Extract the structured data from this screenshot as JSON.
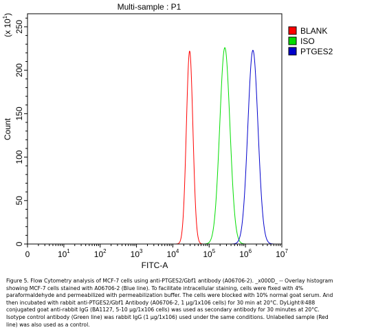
{
  "chart_data": {
    "type": "histogram",
    "title": "Multi-sample : P1",
    "xlabel": "FITC-A",
    "ylabel": "Count",
    "y_multiplier": "(x 10",
    "y_multiplier_exp": "1",
    "y_multiplier_close": ")",
    "xscale": "log",
    "xlim": [
      1,
      10000000
    ],
    "ylim": [
      0,
      265
    ],
    "x_ticks": [
      {
        "base": "0",
        "exp": ""
      },
      {
        "base": "10",
        "exp": "1"
      },
      {
        "base": "10",
        "exp": "2"
      },
      {
        "base": "10",
        "exp": "3"
      },
      {
        "base": "10",
        "exp": "4"
      },
      {
        "base": "10",
        "exp": "5"
      },
      {
        "base": "10",
        "exp": "6"
      },
      {
        "base": "10",
        "exp": "7"
      }
    ],
    "y_ticks": [
      "0",
      "50",
      "100",
      "150",
      "200",
      "250"
    ],
    "legend_position": "top-right",
    "series": [
      {
        "name": "BLANK",
        "color": "#ff0000",
        "peak_x": 29000,
        "peak_count": 222,
        "spread_decades": 0.09
      },
      {
        "name": "ISO",
        "color": "#00dd00",
        "peak_x": 270000,
        "peak_count": 226,
        "spread_decades": 0.14
      },
      {
        "name": "PTGES2",
        "color": "#0000cc",
        "peak_x": 1600000,
        "peak_count": 223,
        "spread_decades": 0.14
      }
    ]
  },
  "caption": {
    "lines": [
      "Figure 5. Flow Cytometry analysis of MCF-7 cells using anti-PTGES2/Gbf1 antibody (A06706-2). _x000D_ -- Overlay histogram",
      "showing MCF-7 cells stained with A06706-2 (Blue line). To facilitate intracellular staining, cells were fixed with 4%",
      "paraformaldehyde and permeabilized with permeabilization buffer. The cells were blocked with 10% normal goat serum. And",
      "then incubated with rabbit anti-PTGES2/Gbf1 Antibody (A06706-2, 1 µg/1x106 cells) for 30 min at 20°C. DyLight®488",
      "conjugated goat anti-rabbit IgG (BA1127, 5-10 µg/1x106 cells) was used as secondary antibody for 30 minutes at 20°C.",
      "Isotype control antibody (Green line) was rabbit IgG (1 µg/1x106) used under the same conditions. Unlabelled sample (Red",
      "line) was also used as a control."
    ]
  }
}
